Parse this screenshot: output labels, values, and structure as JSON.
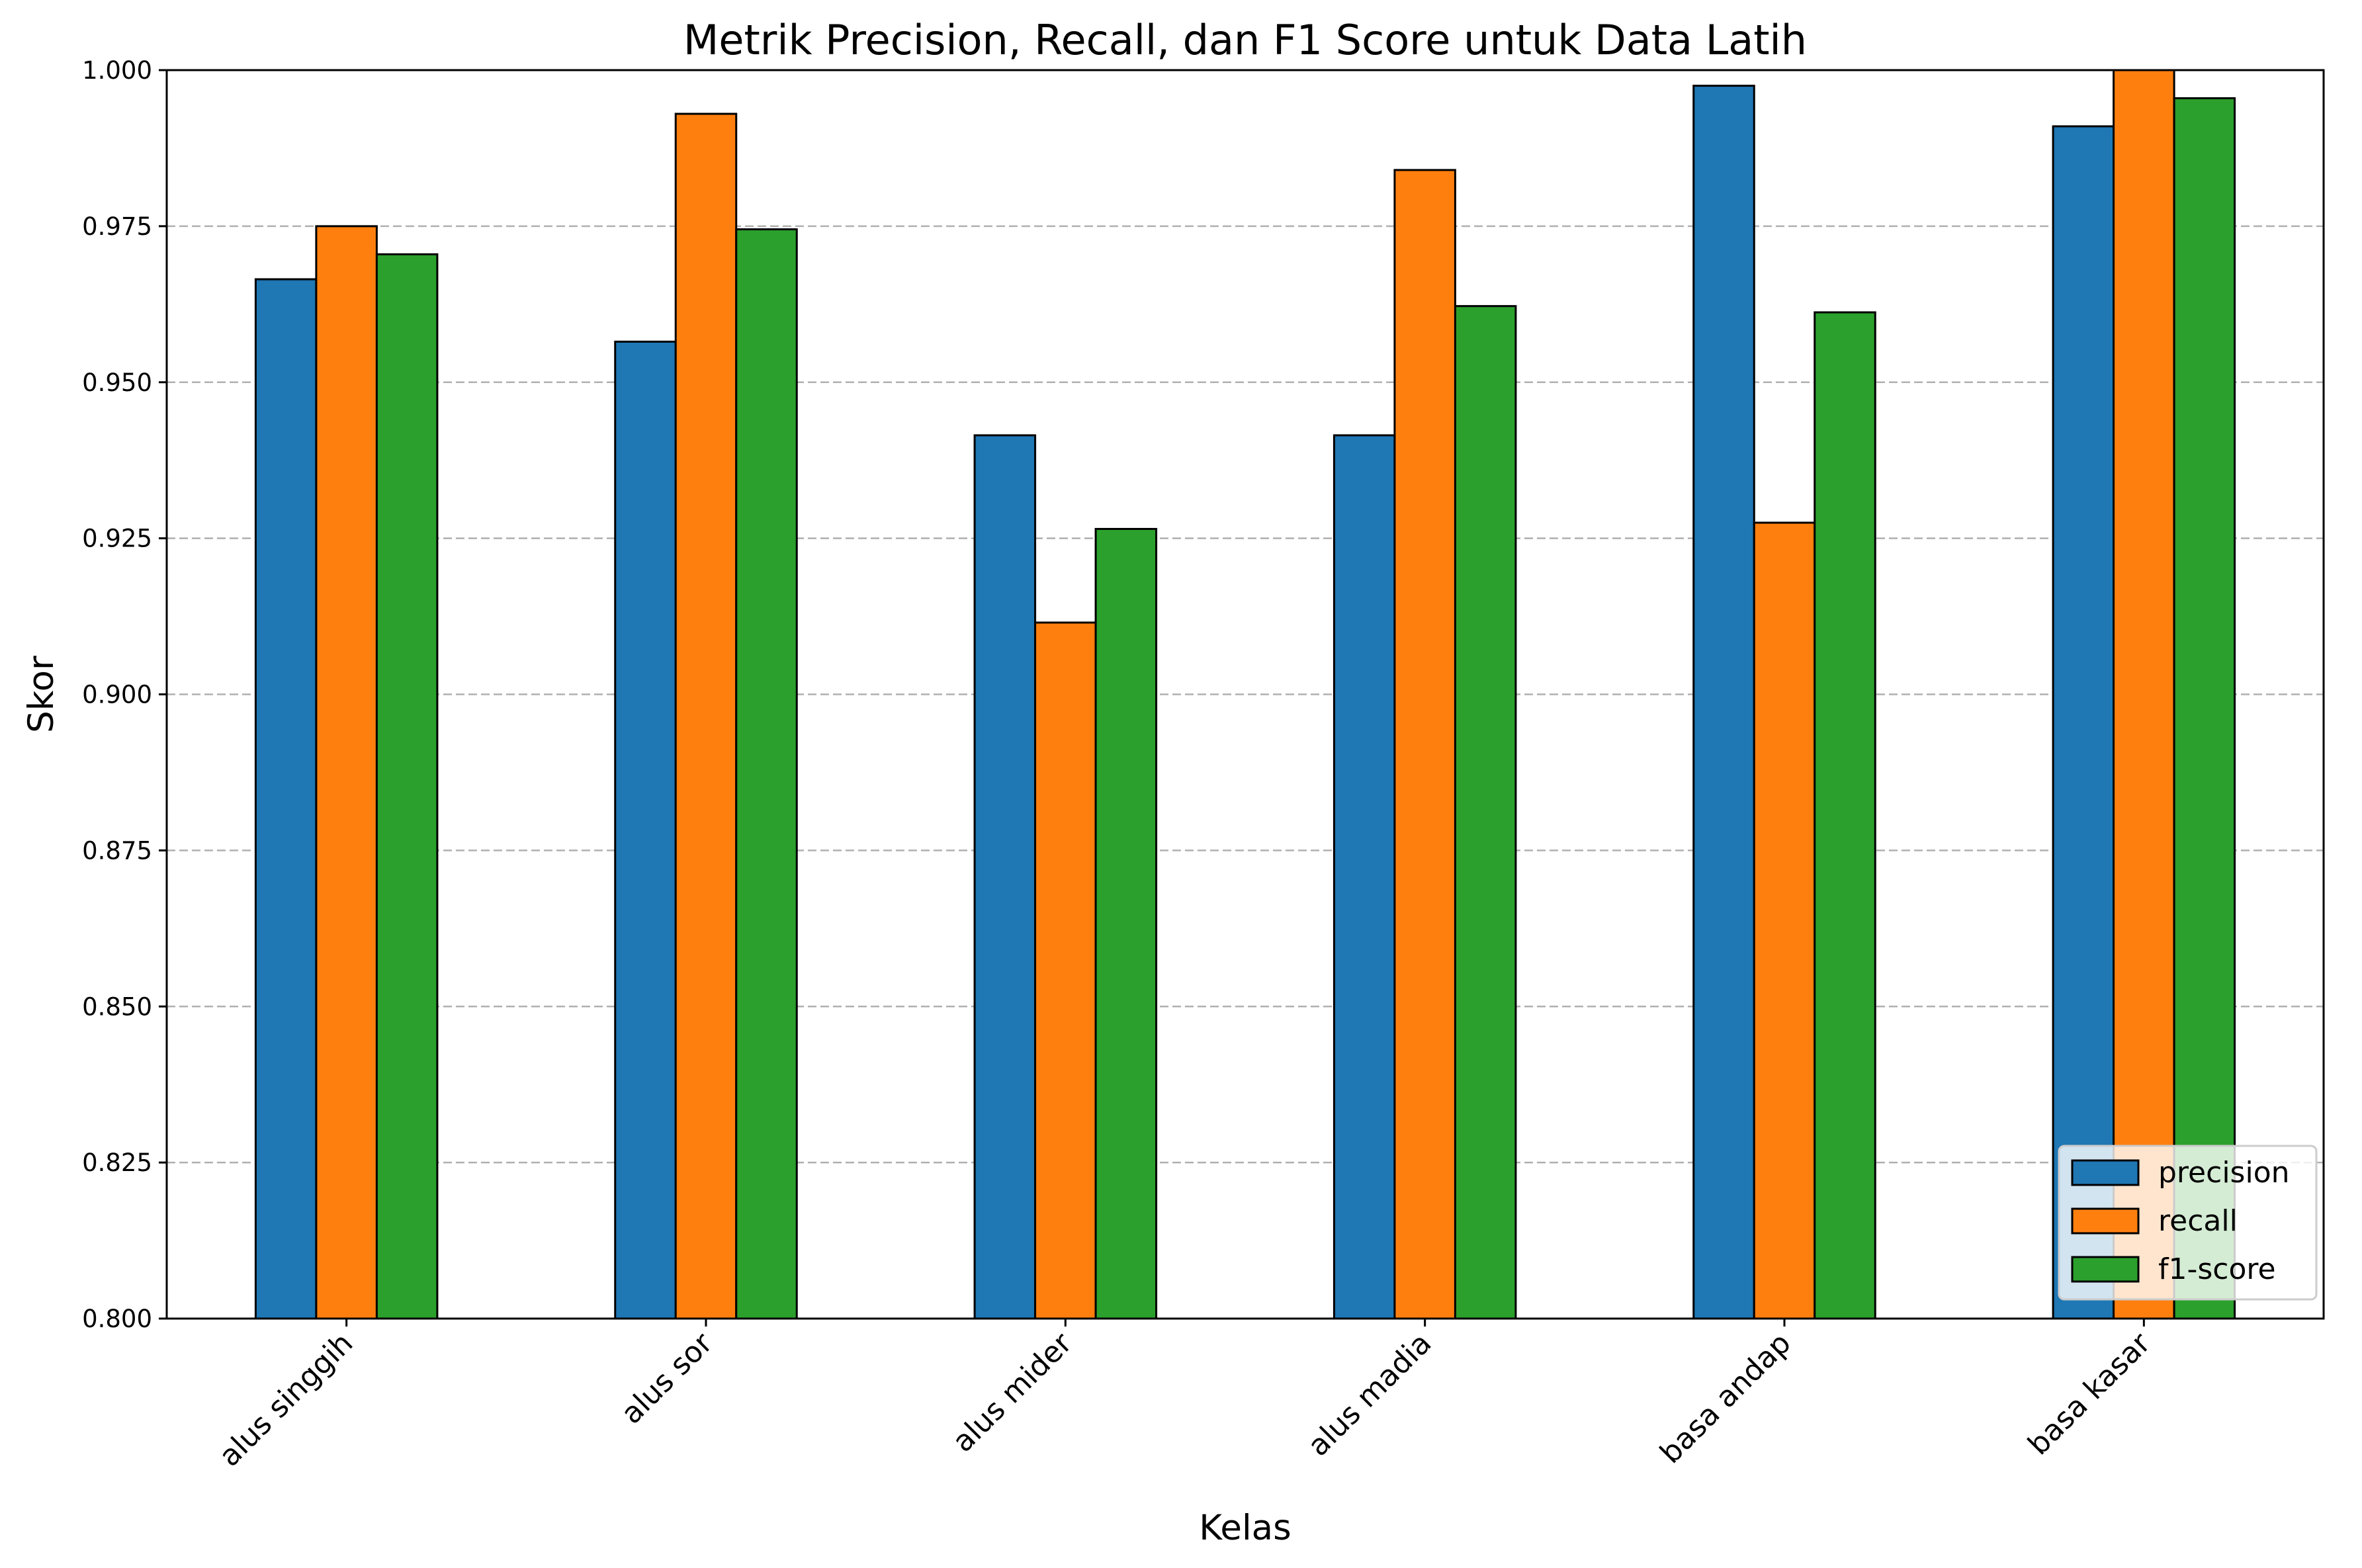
{
  "chart_data": {
    "type": "bar",
    "title": "Metrik Precision, Recall, dan F1 Score untuk Data Latih",
    "xlabel": "Kelas",
    "ylabel": "Skor",
    "ylim": [
      0.8,
      1.0
    ],
    "yticks": [
      "0.800",
      "0.825",
      "0.850",
      "0.875",
      "0.900",
      "0.925",
      "0.950",
      "0.975",
      "1.000"
    ],
    "grid": "y-dashed",
    "legend_position": "bottom-right",
    "categories": [
      "alus singgih",
      "alus sor",
      "alus mider",
      "alus madia",
      "basa andap",
      "basa kasar"
    ],
    "series": [
      {
        "name": "precision",
        "color": "#1f77b4",
        "values": [
          0.9665,
          0.9565,
          0.9415,
          0.9415,
          0.9975,
          0.991
        ]
      },
      {
        "name": "recall",
        "color": "#ff7f0e",
        "values": [
          0.975,
          0.993,
          0.9115,
          0.984,
          0.9275,
          1.0
        ]
      },
      {
        "name": "f1-score",
        "color": "#2ca02c",
        "values": [
          0.9705,
          0.9745,
          0.9265,
          0.9622,
          0.9612,
          0.9955
        ]
      }
    ]
  }
}
